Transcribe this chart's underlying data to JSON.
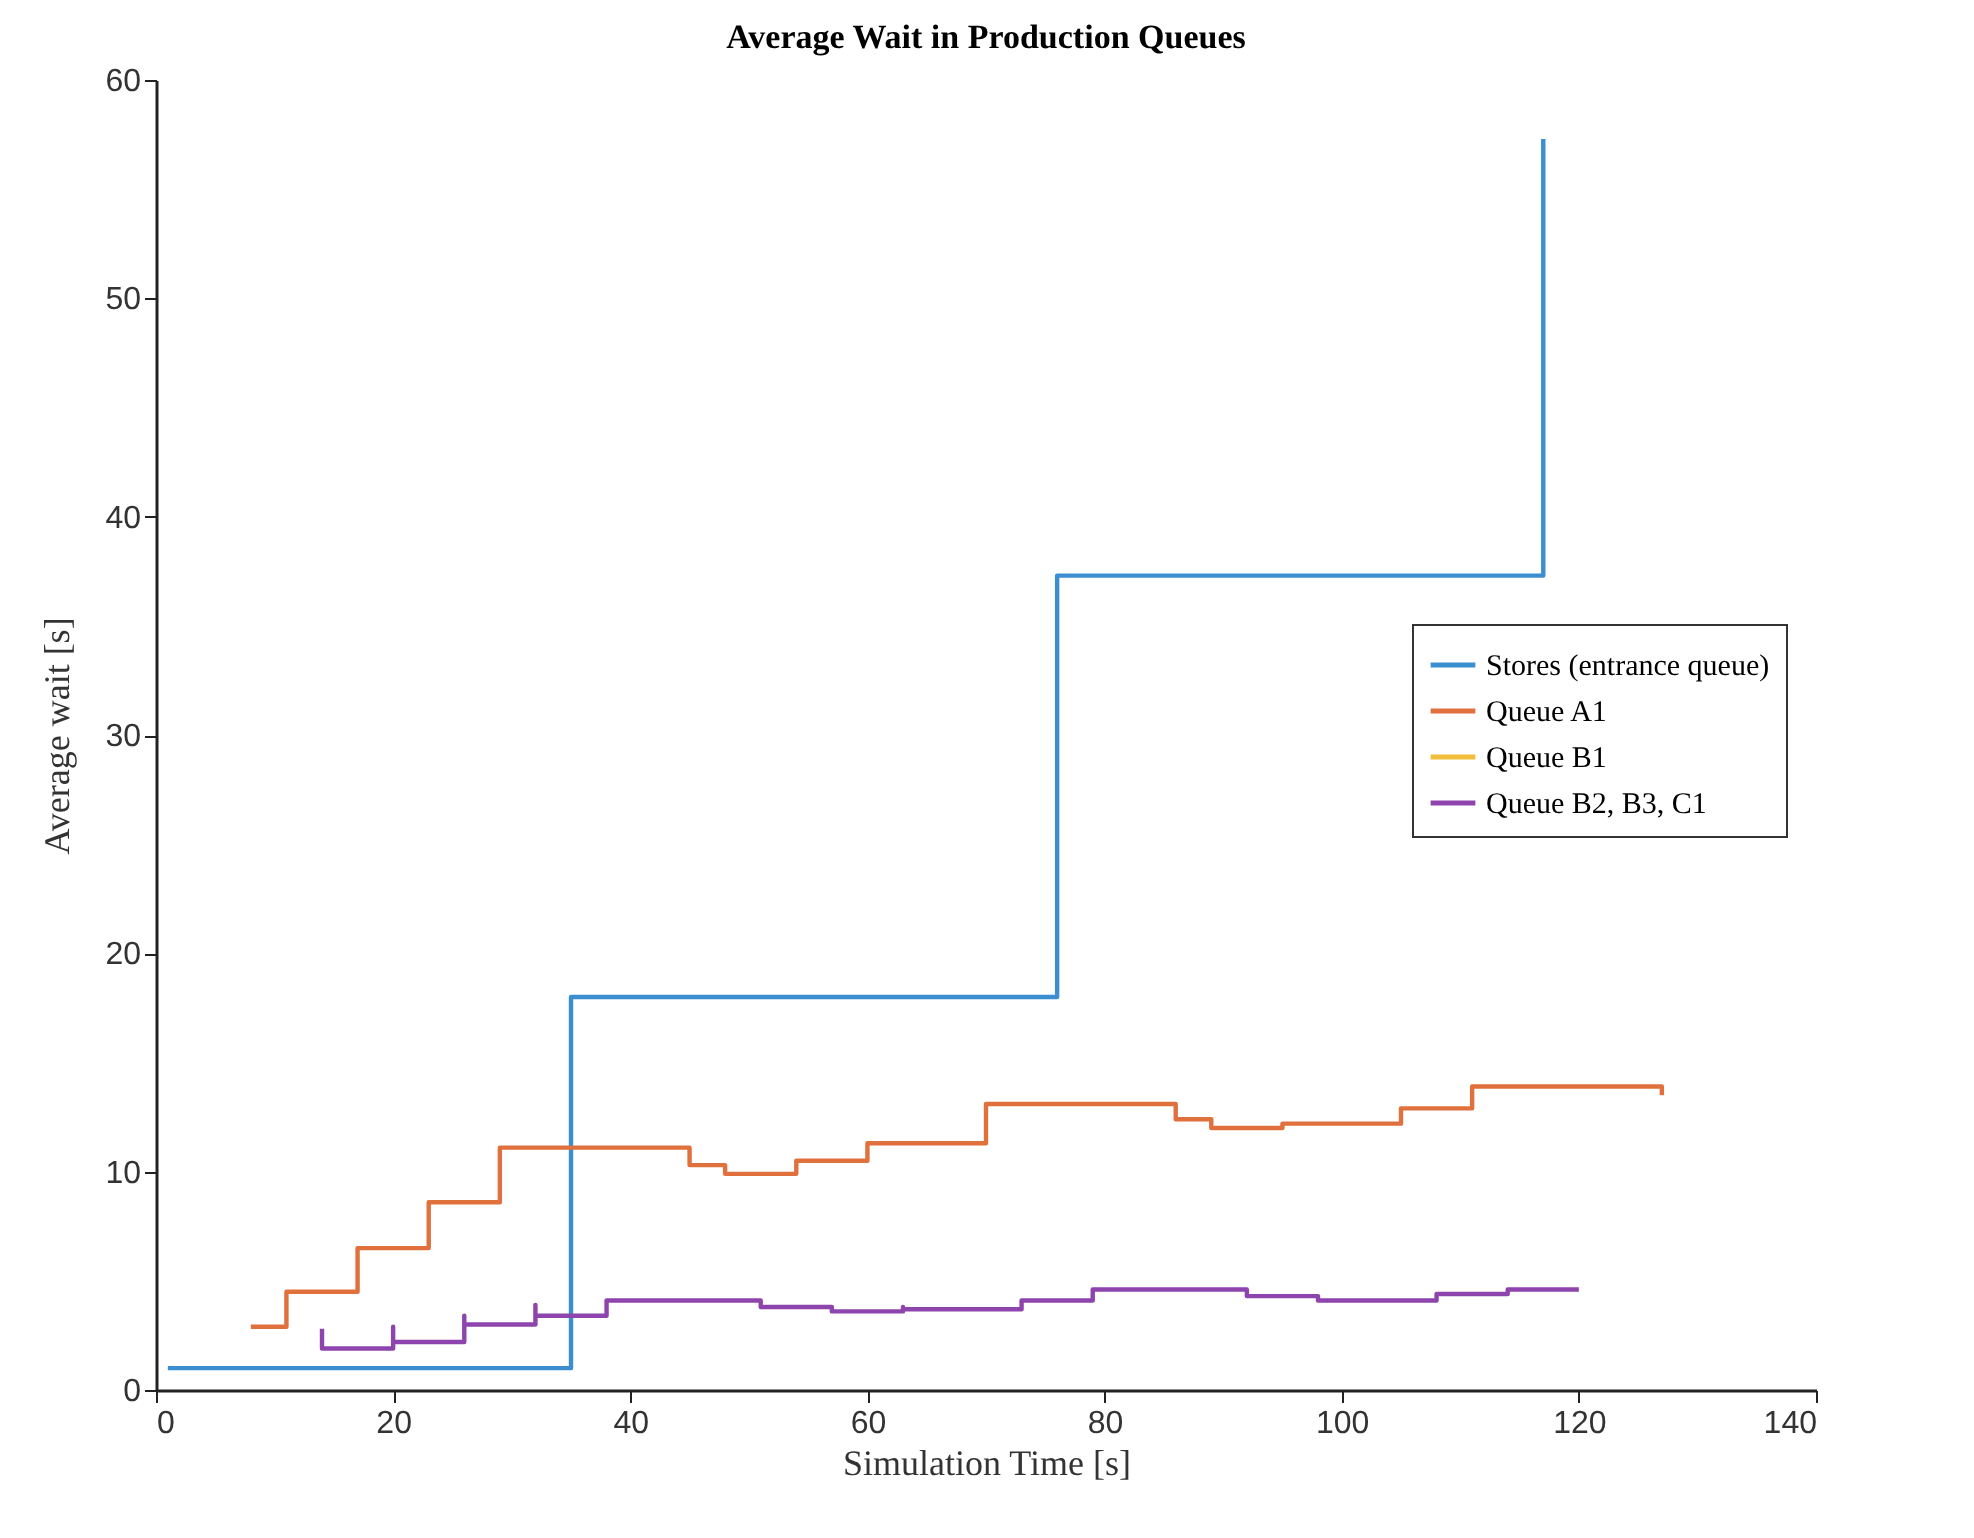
{
  "chart_data": {
    "type": "step",
    "title": "Average Wait in Production Queues",
    "xlabel": "Simulation Time [s]",
    "ylabel": "Average wait [s]",
    "xlim": [
      0,
      140
    ],
    "xticks": [
      0,
      20,
      40,
      60,
      80,
      100,
      120,
      140
    ],
    "ylim": [
      0,
      60
    ],
    "yticks": [
      0,
      10,
      20,
      30,
      40,
      50,
      60
    ],
    "grid": false,
    "legend": "right",
    "marker": "none",
    "line_style": "solid",
    "series": [
      {
        "name": "Stores (entrance queue)",
        "color": "#3b8fd0",
        "x": [
          1,
          35,
          76,
          117,
          117
        ],
        "values": [
          1,
          18,
          37.3,
          57.3,
          57.3
        ]
      },
      {
        "name": "Queue A1",
        "color": "#e0703c",
        "x": [
          8,
          11,
          17,
          23,
          29,
          45,
          48,
          54,
          60,
          70,
          86,
          89,
          95,
          105,
          111,
          127,
          127
        ],
        "values": [
          2.9,
          4.5,
          6.5,
          8.6,
          11.1,
          10.3,
          9.9,
          10.5,
          11.3,
          13.1,
          12.4,
          12.0,
          12.2,
          12.9,
          13.9,
          13.5,
          13.5
        ]
      },
      {
        "name": "Queue B1",
        "color": "#f2be3c",
        "values": [
          null
        ]
      },
      {
        "name": "Queue B2, B3, C1",
        "color": "#8e44ad",
        "x": [
          14,
          14,
          20,
          20,
          26,
          26,
          32,
          32,
          38,
          51,
          57,
          63,
          63,
          73,
          79,
          92,
          98,
          108,
          114,
          120
        ],
        "values": [
          2.8,
          1.9,
          2.9,
          2.2,
          3.4,
          3.0,
          3.9,
          3.4,
          4.1,
          3.8,
          3.6,
          3.8,
          3.7,
          4.1,
          4.6,
          4.3,
          4.1,
          4.4,
          4.6,
          4.6
        ]
      }
    ]
  }
}
